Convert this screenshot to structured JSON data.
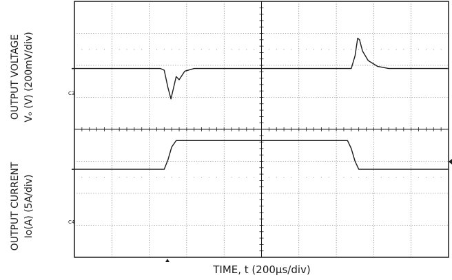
{
  "chart_data": {
    "type": "line",
    "title": "",
    "xlabel": "TIME, t (200μs/div)",
    "ylabel_top_line1": "OUTPUT VOLTAGE",
    "ylabel_top_line2": "Vₒ (V) (200mV/div)",
    "ylabel_bottom_line1": "OUTPUT CURRENT",
    "ylabel_bottom_line2": "Io(A) (5A/div)",
    "grid": true,
    "x_divisions": 10,
    "y_divisions": 8,
    "xlim_div": [
      0,
      10
    ],
    "ylim_div": [
      0,
      8
    ],
    "series": [
      {
        "channel_label": "C3",
        "scale": "200mV/div",
        "points": [
          [
            0,
            5.9
          ],
          [
            2.3,
            5.9
          ],
          [
            2.4,
            5.85
          ],
          [
            2.5,
            5.3
          ],
          [
            2.58,
            4.95
          ],
          [
            2.65,
            5.3
          ],
          [
            2.72,
            5.65
          ],
          [
            2.8,
            5.55
          ],
          [
            2.95,
            5.82
          ],
          [
            3.2,
            5.9
          ],
          [
            7.4,
            5.9
          ],
          [
            7.5,
            6.3
          ],
          [
            7.57,
            6.85
          ],
          [
            7.62,
            6.8
          ],
          [
            7.7,
            6.45
          ],
          [
            7.85,
            6.15
          ],
          [
            8.1,
            5.97
          ],
          [
            8.4,
            5.9
          ],
          [
            10,
            5.9
          ]
        ]
      },
      {
        "channel_label": "C4",
        "scale": "5A/div",
        "points": [
          [
            0,
            2.75
          ],
          [
            2.4,
            2.75
          ],
          [
            2.5,
            3.05
          ],
          [
            2.6,
            3.45
          ],
          [
            2.72,
            3.65
          ],
          [
            7.3,
            3.65
          ],
          [
            7.4,
            3.4
          ],
          [
            7.5,
            3.0
          ],
          [
            7.6,
            2.75
          ],
          [
            10,
            2.75
          ]
        ]
      }
    ]
  }
}
